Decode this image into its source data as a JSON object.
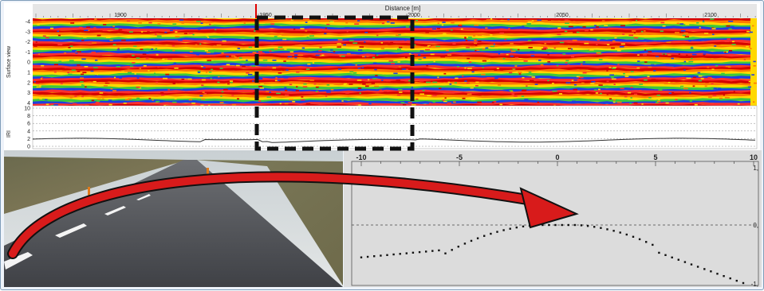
{
  "top_panel": {
    "distance_title": "Distance [m]",
    "distance_ticks": [
      "1900",
      "1950",
      "2000",
      "2050",
      "2100"
    ],
    "surface_axis_title": "Surface view",
    "surface_ticks": [
      "-4",
      "-3",
      "-2",
      "-1",
      "0",
      "1",
      "2",
      "3",
      "4"
    ],
    "iri_axis_title": "IRI",
    "iri_ticks": [
      "10",
      "8",
      "6",
      "4",
      "2",
      "0"
    ],
    "colors": [
      "#d40000",
      "#ff7a00",
      "#ffd800",
      "#3cc83c",
      "#1f3fe0",
      "#ff2e2e"
    ]
  },
  "profile_panel": {
    "x_ticks": [
      "-10",
      "-5",
      "0",
      "5",
      "10"
    ],
    "y_ticks": [
      "1,",
      "0,",
      "-1,"
    ],
    "ylim": [
      -1,
      1
    ],
    "xlim": [
      -10,
      10
    ]
  },
  "photo": {
    "name": "road-photo"
  },
  "arrow": {
    "color": "#d81b1b"
  }
}
